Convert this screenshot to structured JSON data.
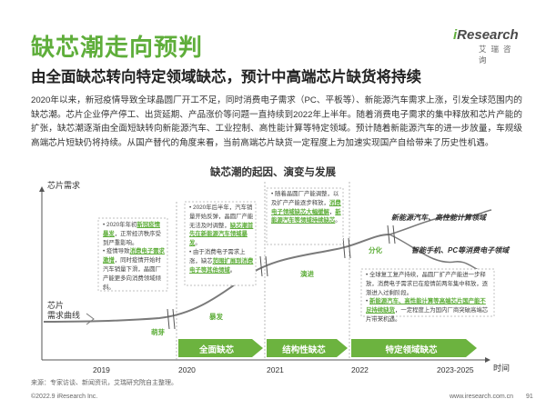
{
  "header": {
    "title": "缺芯潮走向预判",
    "subtitle": "由全面缺芯转向特定领域缺芯，预计中高端芯片缺货将持续"
  },
  "logo": {
    "main_prefix": "i",
    "main": "Research",
    "sub": "艾瑞咨询"
  },
  "intro": "2020年以来，新冠疫情导致全球晶圆厂开工不足，同时消费电子需求（PC、平板等）、新能源汽车需求上涨，引发全球范围内的缺芯潮。芯片企业停产停工、出货延期、产品涨价等问题一直持续到2022年上半年。随着消费电子需求的集中释放和芯片产能的扩张，缺芯潮逐渐由全面短缺转向新能源汽车、工业控制、高性能计算等特定领域。预计随着新能源汽车的进一步放量，车规级高端芯片短缺仍将持续。从国产替代的角度来看，当前高端芯片缺货一定程度上为加速实现国产自给带来了历史性机遇。",
  "diagram": {
    "title": "缺芯潮的起因、演变与发展",
    "y_label": "芯片需求",
    "x_label": "时间",
    "curve_label": [
      "芯片",
      "需求曲线"
    ],
    "years": [
      "2019",
      "2020",
      "2021",
      "2022",
      "2023-2025"
    ],
    "arrows": [
      "全面缺芯",
      "结构性缺芯",
      "特定领域缺芯"
    ],
    "stages": [
      "萌芽",
      "暴发",
      "演进",
      "分化"
    ],
    "branches": [
      "新能源汽车、高性能计算领域",
      "智能手机、PC等消费电子领域"
    ],
    "notes": {
      "n1": {
        "a": "2020年年初",
        "b": "新冠疫情暴发",
        "c": "，正常经济秩序受到严重影响。",
        "d": "疫情导致",
        "e": "消费电子需求激增",
        "f": "，同时疫情开始时汽车销量下滑，晶圆厂产能更多向消费领域倾斜。"
      },
      "n2": {
        "a": "2020年后半年，汽车销量开始反弹，晶圆厂产能无法及时调整，",
        "b": "缺芯潮首先在新能源汽车领域暴发",
        "c": "。",
        "d": "由于消费电子需求上涨，缺芯",
        "e": "范围扩展到消费电子等其他领域",
        "f": "。"
      },
      "n3": {
        "a": "随着晶圆厂产能调整，以及扩产产能逐步释放，",
        "b": "消费电子领域缺芯大幅缓解",
        "c": "，",
        "d": "新能源汽车等领域持续缺芯",
        "e": "。"
      },
      "n4": {
        "a": "全球复工复产持续，晶圆厂扩产产能进一步释放，消费电子需求已在疫情前两年集中释放，逐渐进入过剩阶段。",
        "b": "新能源汽车、高性能计算等高端芯片国产能不足持续缺货",
        "c": "，一定程度上为国内厂商突破高端芯片带来机遇。"
      }
    }
  },
  "footer": {
    "source": "来源：专家访谈、新闻资讯，艾瑞研究院自主整理。",
    "copyright": "©2022.9 iResearch Inc.",
    "website": "www.iresearch.com.cn",
    "page": "91"
  },
  "colors": {
    "accent": "#5fae3b",
    "arrow": "#6cb33f"
  }
}
